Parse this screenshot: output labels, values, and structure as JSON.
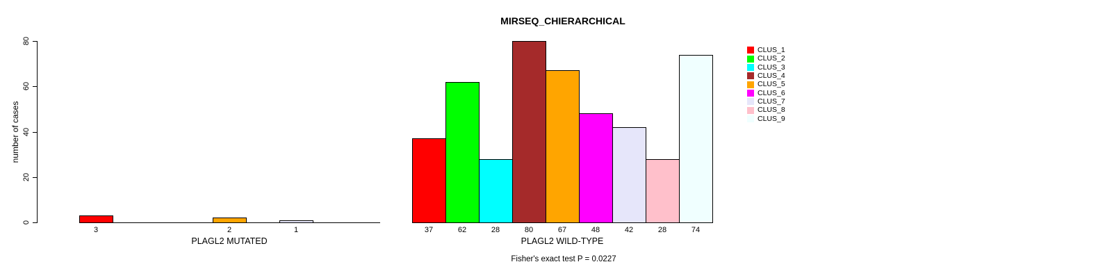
{
  "chart_data": {
    "type": "bar",
    "title": "MIRSEQ_CHIERARCHICAL",
    "ylabel": "number of cases",
    "annotation": "Fisher's exact test P = 0.0227",
    "ylim": [
      0,
      80
    ],
    "yticks": [
      0,
      20,
      40,
      60,
      80
    ],
    "grid": false,
    "legend_position": "right",
    "clusters": [
      {
        "name": "CLUS_1",
        "color": "#FF0000"
      },
      {
        "name": "CLUS_2",
        "color": "#00FF00"
      },
      {
        "name": "CLUS_3",
        "color": "#00FFFF"
      },
      {
        "name": "CLUS_4",
        "color": "#A52A2A"
      },
      {
        "name": "CLUS_5",
        "color": "#FFA500"
      },
      {
        "name": "CLUS_6",
        "color": "#FF00FF"
      },
      {
        "name": "CLUS_7",
        "color": "#E6E6FA"
      },
      {
        "name": "CLUS_8",
        "color": "#FFC0CB"
      },
      {
        "name": "CLUS_9",
        "color": "#F0FFFF"
      }
    ],
    "groups": [
      {
        "label": "PLAGL2 MUTATED",
        "values": [
          3,
          0,
          0,
          0,
          2,
          0,
          1,
          0,
          0
        ],
        "bar_labels": [
          "3",
          "",
          "",
          "",
          "2",
          "",
          "1",
          "",
          ""
        ]
      },
      {
        "label": "PLAGL2 WILD-TYPE",
        "values": [
          37,
          62,
          28,
          80,
          67,
          48,
          42,
          28,
          74
        ],
        "bar_labels": [
          "37",
          "62",
          "28",
          "80",
          "67",
          "48",
          "42",
          "28",
          "74"
        ]
      }
    ]
  }
}
